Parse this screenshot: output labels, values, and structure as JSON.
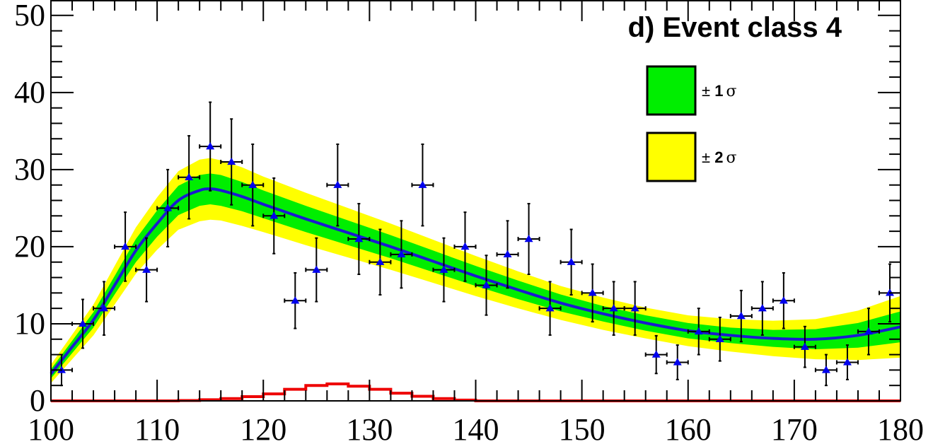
{
  "chart_data": {
    "type": "scatter",
    "title": "d) Event class 4",
    "xlabel": "",
    "ylabel": "",
    "xlim": [
      100,
      180
    ],
    "ylim": [
      0,
      52
    ],
    "x_ticks": [
      "100",
      "110",
      "120",
      "130",
      "140",
      "150",
      "160",
      "170",
      "180"
    ],
    "y_ticks": [
      "0",
      "10",
      "20",
      "30",
      "40",
      "50"
    ],
    "legend": {
      "placement": "top-right",
      "entries": [
        {
          "pm": "±",
          "num": "1",
          "sym": "σ",
          "color": "#00ee00"
        },
        {
          "pm": "±",
          "num": "2",
          "sym": "σ",
          "color": "#ffff00"
        }
      ]
    },
    "colors": {
      "data_marker": "#0000ee",
      "fit_line": "#1a1ad0",
      "band_1sigma": "#00ee00",
      "band_2sigma": "#ffff00",
      "signal": "#ee0000"
    },
    "data_points": {
      "bin_half_width": 1,
      "x": [
        101,
        103,
        105,
        107,
        109,
        111,
        113,
        115,
        117,
        119,
        121,
        123,
        125,
        127,
        129,
        131,
        133,
        135,
        137,
        139,
        141,
        143,
        145,
        147,
        149,
        151,
        153,
        155,
        157,
        159,
        161,
        163,
        165,
        167,
        169,
        171,
        173,
        175,
        177,
        179
      ],
      "y": [
        4,
        10,
        12,
        20,
        17,
        25,
        29,
        33,
        31,
        28,
        24,
        13,
        17,
        28,
        21,
        18,
        19,
        28,
        17,
        20,
        15,
        19,
        21,
        12,
        18,
        14,
        12,
        12,
        6,
        5,
        9,
        8,
        11,
        12,
        13,
        7,
        4,
        5,
        9,
        14
      ]
    },
    "fit": {
      "x": [
        100,
        102,
        104,
        106,
        108,
        110,
        112,
        114,
        115,
        116,
        118,
        120,
        124,
        128,
        132,
        136,
        140,
        144,
        148,
        152,
        156,
        160,
        164,
        168,
        172,
        176,
        180
      ],
      "y": [
        3.5,
        7,
        10.5,
        15,
        19.5,
        23,
        26,
        27.3,
        27.5,
        27.3,
        26.5,
        25.5,
        23.6,
        21.8,
        20,
        18.1,
        16.2,
        14.4,
        12.7,
        11.3,
        10.1,
        9.1,
        8.5,
        8.1,
        8.0,
        8.5,
        9.6
      ],
      "sigma1": [
        0.6,
        0.8,
        1.0,
        1.2,
        1.5,
        1.7,
        1.9,
        2.0,
        2.0,
        2.0,
        1.9,
        1.8,
        1.7,
        1.6,
        1.5,
        1.4,
        1.3,
        1.2,
        1.1,
        1.0,
        1.0,
        1.0,
        1.0,
        1.1,
        1.3,
        1.6,
        2.0
      ],
      "sigma2": [
        1.2,
        1.6,
        2.0,
        2.5,
        3.0,
        3.4,
        3.8,
        4.0,
        4.0,
        3.9,
        3.8,
        3.6,
        3.4,
        3.2,
        3.0,
        2.8,
        2.6,
        2.4,
        2.2,
        2.1,
        2.0,
        2.0,
        2.1,
        2.3,
        2.6,
        3.2,
        4.0
      ]
    },
    "signal": {
      "bin_edges": [
        100,
        102,
        104,
        106,
        108,
        110,
        112,
        114,
        116,
        118,
        120,
        122,
        124,
        126,
        128,
        130,
        132,
        134,
        136,
        138,
        140,
        180
      ],
      "values": [
        0,
        0,
        0,
        0,
        0,
        0,
        0.05,
        0.15,
        0.3,
        0.55,
        0.9,
        1.5,
        2.0,
        2.2,
        1.9,
        1.5,
        1.0,
        0.6,
        0.3,
        0.1,
        0
      ]
    }
  }
}
